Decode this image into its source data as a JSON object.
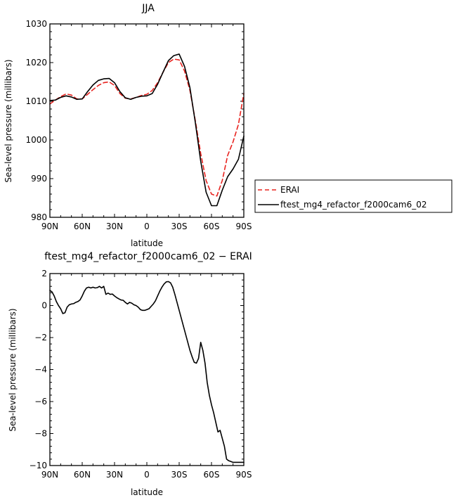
{
  "chart_data": [
    {
      "type": "line",
      "title": "JJA",
      "xlabel": "latitude",
      "ylabel": "Sea-level pressure (millibars)",
      "xlim": [
        90,
        -90
      ],
      "ylim": [
        980,
        1030
      ],
      "x_tick_values": [
        90,
        60,
        30,
        0,
        -30,
        -60,
        -90
      ],
      "x_tick_labels": [
        "90N",
        "60N",
        "30N",
        "0",
        "30S",
        "60S",
        "90S"
      ],
      "y_ticks": [
        980,
        990,
        1000,
        1010,
        1020,
        1030
      ],
      "legend_position": "right",
      "series": [
        {
          "name": "ERAI",
          "color": "#e8231f",
          "dash": "dashed",
          "x": [
            90,
            85,
            80,
            75,
            70,
            65,
            60,
            55,
            50,
            45,
            40,
            35,
            30,
            25,
            20,
            15,
            10,
            5,
            0,
            -5,
            -10,
            -15,
            -20,
            -25,
            -30,
            -35,
            -40,
            -45,
            -50,
            -55,
            -60,
            -65,
            -70,
            -75,
            -80,
            -85,
            -90
          ],
          "values": [
            1009.3,
            1010.3,
            1011.2,
            1011.9,
            1011.6,
            1010.6,
            1010.6,
            1011.8,
            1013.0,
            1014.1,
            1014.8,
            1015.0,
            1014.1,
            1012.0,
            1010.8,
            1010.6,
            1011.0,
            1011.5,
            1011.8,
            1012.8,
            1014.8,
            1017.5,
            1020.0,
            1020.9,
            1020.7,
            1017.8,
            1012.8,
            1005.0,
            996.5,
            989.5,
            986.0,
            985.5,
            989.5,
            996.0,
            999.5,
            1004.0,
            1012.0
          ]
        },
        {
          "name": "ftest_mg4_refactor_f2000cam6_02",
          "color": "#000000",
          "dash": "solid",
          "x": [
            90,
            85,
            80,
            75,
            70,
            65,
            60,
            55,
            50,
            45,
            40,
            35,
            30,
            25,
            20,
            15,
            10,
            5,
            0,
            -5,
            -10,
            -15,
            -20,
            -25,
            -30,
            -35,
            -40,
            -45,
            -50,
            -55,
            -60,
            -65,
            -70,
            -75,
            -80,
            -85,
            -90
          ],
          "values": [
            1010.2,
            1010.3,
            1011.0,
            1011.4,
            1011.1,
            1010.5,
            1010.6,
            1012.5,
            1014.2,
            1015.4,
            1015.8,
            1015.9,
            1014.8,
            1012.5,
            1010.9,
            1010.5,
            1011.0,
            1011.3,
            1011.4,
            1012.0,
            1014.4,
            1017.5,
            1020.5,
            1021.8,
            1022.2,
            1019.0,
            1013.5,
            1004.5,
            994.5,
            986.5,
            983.0,
            983.0,
            987.0,
            990.5,
            992.5,
            995.0,
            1001.0
          ]
        }
      ]
    },
    {
      "type": "line",
      "title": "ftest_mg4_refactor_f2000cam6_02 − ERAI",
      "xlabel": "latitude",
      "ylabel": "Sea-level pressure (millibars)",
      "xlim": [
        90,
        -90
      ],
      "ylim": [
        -10,
        2
      ],
      "x_tick_values": [
        90,
        60,
        30,
        0,
        -30,
        -60,
        -90
      ],
      "x_tick_labels": [
        "90N",
        "60N",
        "30N",
        "0",
        "30S",
        "60S",
        "90S"
      ],
      "y_ticks": [
        -10,
        -8,
        -6,
        -4,
        -2,
        0,
        2
      ],
      "series": [
        {
          "color": "#000000",
          "dash": "solid",
          "x": [
            90,
            88,
            86,
            84,
            82,
            80,
            78,
            76,
            74,
            72,
            70,
            68,
            66,
            64,
            62,
            60,
            58,
            56,
            54,
            52,
            50,
            48,
            46,
            44,
            42,
            40,
            38,
            36,
            34,
            32,
            30,
            28,
            26,
            24,
            22,
            20,
            18,
            16,
            14,
            12,
            10,
            8,
            6,
            4,
            2,
            0,
            -2,
            -4,
            -6,
            -8,
            -10,
            -12,
            -14,
            -16,
            -18,
            -20,
            -22,
            -24,
            -26,
            -28,
            -30,
            -32,
            -34,
            -36,
            -38,
            -40,
            -42,
            -44,
            -46,
            -48,
            -50,
            -52,
            -54,
            -56,
            -58,
            -60,
            -62,
            -64,
            -66,
            -68,
            -70,
            -72,
            -74,
            -76,
            -78,
            -80,
            -82,
            -84,
            -86,
            -88,
            -90
          ],
          "values": [
            0.95,
            0.85,
            0.6,
            0.25,
            0.0,
            -0.2,
            -0.5,
            -0.45,
            -0.1,
            0.05,
            0.1,
            0.12,
            0.2,
            0.25,
            0.35,
            0.6,
            0.9,
            1.1,
            1.15,
            1.1,
            1.15,
            1.1,
            1.12,
            1.2,
            1.1,
            1.2,
            0.7,
            0.78,
            0.7,
            0.72,
            0.6,
            0.5,
            0.42,
            0.35,
            0.33,
            0.2,
            0.1,
            0.2,
            0.15,
            0.05,
            0.0,
            -0.1,
            -0.25,
            -0.3,
            -0.3,
            -0.25,
            -0.2,
            -0.05,
            0.1,
            0.3,
            0.6,
            0.9,
            1.15,
            1.35,
            1.48,
            1.5,
            1.42,
            1.15,
            0.7,
            0.2,
            -0.3,
            -0.8,
            -1.3,
            -1.8,
            -2.3,
            -2.8,
            -3.2,
            -3.55,
            -3.6,
            -3.3,
            -2.3,
            -2.8,
            -3.6,
            -4.8,
            -5.6,
            -6.2,
            -6.7,
            -7.3,
            -7.9,
            -7.8,
            -8.3,
            -8.8,
            -9.6,
            -9.7,
            -9.75,
            -9.8,
            -9.8,
            -9.8,
            -9.8,
            -9.8,
            -9.8
          ]
        }
      ]
    }
  ]
}
